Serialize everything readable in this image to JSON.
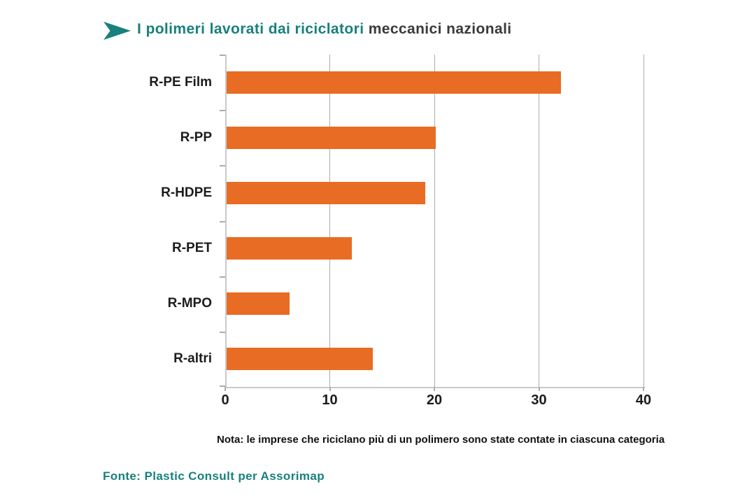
{
  "header": {
    "title_teal": "I polimeri lavorati dai riciclatori",
    "title_dark": "meccanici nazionali"
  },
  "chart_data": {
    "type": "bar",
    "orientation": "horizontal",
    "title": "I polimeri lavorati dai riciclatori meccanici nazionali",
    "categories": [
      "R-PE Film",
      "R-PP",
      "R-HDPE",
      "R-PET",
      "R-MPO",
      "R-altri"
    ],
    "values": [
      32,
      20,
      19,
      12,
      6,
      14
    ],
    "xlim": [
      0,
      40
    ],
    "xticks": [
      0,
      10,
      20,
      30,
      40
    ],
    "grid": "vertical major gridlines on",
    "legend": "none",
    "bar_color": "#E86C23",
    "axis_color": "#C9C9C9",
    "grid_color": "#ACACAC",
    "tick_label_color": "#1C1C1C"
  },
  "note": "Nota: le imprese che riciclano più di un polimero sono state contate in ciascuna categoria",
  "source": "Fonte: Plastic Consult per Assorimap",
  "colors": {
    "teal": "#18807D",
    "title_dark": "#3A3A3A",
    "orange": "#E86C23"
  }
}
